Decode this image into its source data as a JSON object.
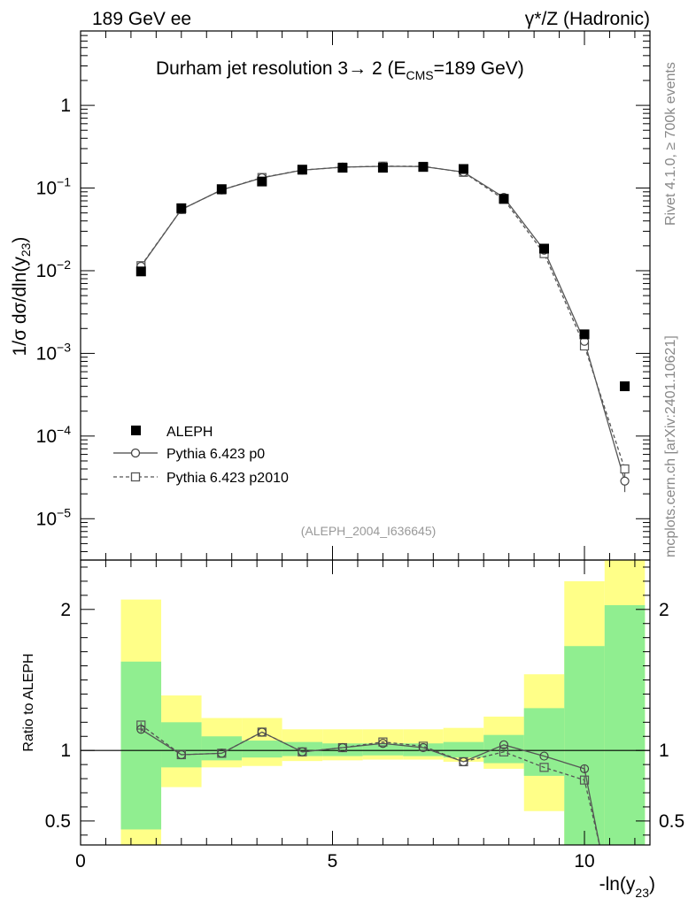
{
  "header": {
    "left_label": "189 GeV ee",
    "right_label": "γ*/Z (Hadronic)",
    "side_top": "Rivet 4.1.0, ≥ 700k events",
    "side_bottom": "mcplots.cern.ch [arXiv:2401.10621]"
  },
  "chart_data": [
    {
      "type": "scatter",
      "panel": "main",
      "title_main": "Durham jet resolution 3",
      "title_arrow": "→",
      "title_rest": " 2 (E",
      "title_sub": "CMS",
      "title_end": "=189 GeV)",
      "ylabel_pre": "1/σ  dσ/dln(y",
      "ylabel_sub": "23",
      "ylabel_post": ")",
      "yscale": "log",
      "xlim": [
        0,
        11.3
      ],
      "ylim_log10": [
        -5.5,
        0.9
      ],
      "ytick_labels": [
        {
          "exp": -5,
          "base": "10",
          "sup": "−5"
        },
        {
          "exp": -4,
          "base": "10",
          "sup": "−4"
        },
        {
          "exp": -3,
          "base": "10",
          "sup": "−3"
        },
        {
          "exp": -2,
          "base": "10",
          "sup": "−2"
        },
        {
          "exp": -1,
          "base": "10",
          "sup": "−1"
        },
        {
          "exp": 0,
          "base": "1",
          "sup": ""
        }
      ],
      "watermark": "(ALEPH_2004_I636645)",
      "legend_position": "bottom-left",
      "bin_edges": [
        0.8,
        1.6,
        2.4,
        3.2,
        4.0,
        4.8,
        5.6,
        6.4,
        7.2,
        8.0,
        8.8,
        9.6,
        10.4,
        11.2
      ],
      "series": [
        {
          "name": "ALEPH",
          "style": "filled-square",
          "x": [
            1.2,
            2.0,
            2.8,
            3.6,
            4.4,
            5.2,
            6.0,
            6.8,
            7.6,
            8.4,
            9.2,
            10.0,
            10.8
          ],
          "values": [
            0.0098,
            0.057,
            0.097,
            0.12,
            0.167,
            0.176,
            0.176,
            0.18,
            0.17,
            0.074,
            0.0185,
            0.0017,
            0.0004
          ]
        },
        {
          "name": "Pythia 6.423 p0",
          "style": "solid-circle",
          "x": [
            1.2,
            2.0,
            2.8,
            3.6,
            4.4,
            5.2,
            6.0,
            6.8,
            7.6,
            8.4,
            9.2,
            10.0,
            10.8
          ],
          "values": [
            0.0113,
            0.055,
            0.095,
            0.133,
            0.165,
            0.179,
            0.183,
            0.182,
            0.156,
            0.077,
            0.0177,
            0.0014,
            2.85e-05
          ]
        },
        {
          "name": "Pythia 6.423 p2010",
          "style": "dashed-square",
          "x": [
            1.2,
            2.0,
            2.8,
            3.6,
            4.4,
            5.2,
            6.0,
            6.8,
            7.6,
            8.4,
            9.2,
            10.0,
            10.8
          ],
          "values": [
            0.0115,
            0.055,
            0.095,
            0.134,
            0.165,
            0.179,
            0.184,
            0.183,
            0.155,
            0.073,
            0.0161,
            0.00123,
            4e-05
          ]
        }
      ]
    },
    {
      "type": "scatter",
      "panel": "ratio",
      "ylabel": "Ratio to ALEPH",
      "xlabel_pre": "-ln(y",
      "xlabel_sub": "23",
      "xlabel_post": ")",
      "xlim": [
        0,
        11.3
      ],
      "ylim": [
        0.33,
        2.35
      ],
      "x_tick_labels": [
        "0",
        "5",
        "10"
      ],
      "y_tick_labels": [
        "0.5",
        "1",
        "2"
      ],
      "bin_edges": [
        0.8,
        1.6,
        2.4,
        3.2,
        4.0,
        4.8,
        5.6,
        6.4,
        7.2,
        8.0,
        8.8,
        9.6,
        10.4,
        11.2
      ],
      "band_green": [
        [
          0.44,
          1.63
        ],
        [
          0.88,
          1.2
        ],
        [
          0.93,
          1.1
        ],
        [
          0.95,
          1.07
        ],
        [
          0.96,
          1.06
        ],
        [
          0.96,
          1.05
        ],
        [
          0.965,
          1.05
        ],
        [
          0.96,
          1.05
        ],
        [
          0.95,
          1.06
        ],
        [
          0.91,
          1.11
        ],
        [
          0.82,
          1.3
        ],
        [
          0.3,
          1.74
        ],
        [
          0.3,
          2.03
        ]
      ],
      "band_yellow": [
        [
          0.26,
          2.07
        ],
        [
          0.74,
          1.39
        ],
        [
          0.88,
          1.23
        ],
        [
          0.89,
          1.23
        ],
        [
          0.925,
          1.15
        ],
        [
          0.93,
          1.15
        ],
        [
          0.935,
          1.15
        ],
        [
          0.935,
          1.15
        ],
        [
          0.92,
          1.16
        ],
        [
          0.87,
          1.24
        ],
        [
          0.57,
          1.54
        ],
        [
          0.3,
          2.2
        ],
        [
          0.3,
          2.4
        ]
      ],
      "series": [
        {
          "name": "Pythia 6.423 p0",
          "style": "solid-circle",
          "x": [
            1.2,
            2.0,
            2.8,
            3.6,
            4.4,
            5.2,
            6.0,
            6.8,
            7.6,
            8.4,
            9.2,
            10.0,
            10.3
          ],
          "values": [
            1.15,
            0.97,
            0.98,
            1.13,
            0.99,
            1.02,
            1.05,
            1.02,
            0.92,
            1.04,
            0.96,
            0.87,
            0.3
          ],
          "errors": [
            0.02,
            0.01,
            0.01,
            0.01,
            0.01,
            0.01,
            0.01,
            0.01,
            0.01,
            0.01,
            0.01,
            0.03,
            0
          ]
        },
        {
          "name": "Pythia 6.423 p2010",
          "style": "dashed-square",
          "x": [
            1.2,
            2.0,
            2.8,
            3.6,
            4.4,
            5.2,
            6.0,
            6.8,
            7.6,
            8.4,
            9.2,
            10.0,
            10.3
          ],
          "values": [
            1.18,
            0.97,
            0.98,
            1.13,
            0.99,
            1.02,
            1.06,
            1.03,
            0.92,
            0.99,
            0.88,
            0.79,
            0.3
          ],
          "errors": [
            0.02,
            0.01,
            0.01,
            0.01,
            0.01,
            0.01,
            0.01,
            0.01,
            0.01,
            0.01,
            0.01,
            0.03,
            0
          ]
        }
      ]
    }
  ]
}
